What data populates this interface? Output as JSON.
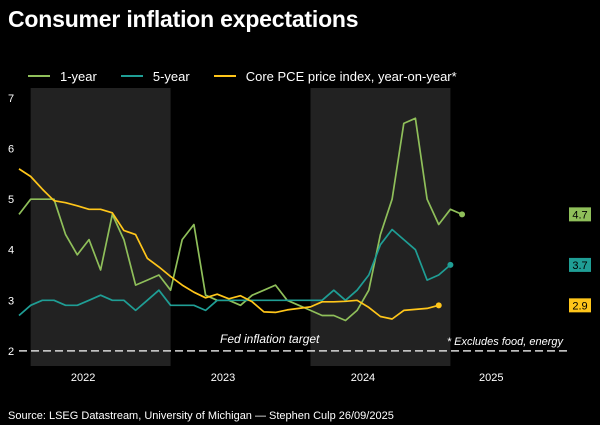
{
  "title": "Consumer inflation expectations",
  "footer": "Source: LSEG Datastream, University of Michigan — Stephen Culp 26/09/2025",
  "colors": {
    "background": "#000000",
    "shade": "#222222",
    "one_year": "#8fbf5a",
    "five_year": "#1f9e95",
    "core_pce": "#ffc61a",
    "target": "#d9d9d9",
    "text": "#ffffff"
  },
  "chart_data": {
    "type": "line",
    "title": "Consumer inflation expectations",
    "xlabel": "",
    "ylabel": "",
    "x_start": "2021-11",
    "x_range": [
      0,
      47
    ],
    "ylim": [
      1.7,
      7.2
    ],
    "y_ticks": [
      2,
      3,
      4,
      5,
      6,
      7
    ],
    "x_tick_labels": [
      {
        "label": "2022",
        "x": 5.5
      },
      {
        "label": "2023",
        "x": 17.5
      },
      {
        "label": "2024",
        "x": 29.5
      },
      {
        "label": "2025",
        "x": 40.5
      }
    ],
    "shaded_years": [
      {
        "label": "2022",
        "from": 1,
        "to": 13
      },
      {
        "label": "2024",
        "from": 25,
        "to": 37
      }
    ],
    "series": [
      {
        "key": "one_year",
        "name": "1-year",
        "values": [
          4.7,
          5.0,
          5.0,
          5.0,
          4.3,
          3.9,
          4.2,
          3.6,
          4.7,
          4.2,
          3.3,
          3.4,
          3.5,
          3.2,
          4.2,
          4.5,
          3.1,
          3.0,
          3.0,
          2.9,
          3.1,
          3.2,
          3.3,
          3.0,
          2.9,
          2.8,
          2.7,
          2.7,
          2.6,
          2.8,
          3.2,
          4.3,
          5.0,
          6.5,
          6.6,
          5.0,
          4.5,
          4.8,
          4.7
        ],
        "end_label": "4.7"
      },
      {
        "key": "five_year",
        "name": "5-year",
        "values": [
          2.7,
          2.9,
          3.0,
          3.0,
          2.9,
          2.9,
          3.0,
          3.1,
          3.0,
          3.0,
          2.8,
          3.0,
          3.2,
          2.9,
          2.9,
          2.9,
          2.8,
          3.0,
          3.0,
          3.0,
          3.0,
          3.0,
          3.0,
          3.0,
          3.0,
          3.0,
          3.0,
          3.2,
          3.0,
          3.2,
          3.5,
          4.1,
          4.4,
          4.2,
          4.0,
          3.4,
          3.5,
          3.7
        ],
        "end_label": "3.7"
      },
      {
        "key": "core_pce",
        "name": "Core PCE price index, year-on-year*",
        "values": [
          5.6,
          5.45,
          5.2,
          4.97,
          4.93,
          4.87,
          4.8,
          4.8,
          4.73,
          4.38,
          4.3,
          3.83,
          3.66,
          3.47,
          3.3,
          3.16,
          3.05,
          3.12,
          3.03,
          3.09,
          2.97,
          2.77,
          2.76,
          2.81,
          2.84,
          2.87,
          2.97,
          2.97,
          2.98,
          3.0,
          2.86,
          2.68,
          2.63,
          2.8,
          2.82,
          2.84,
          2.9
        ],
        "end_label": "2.9"
      }
    ],
    "reference_line": {
      "value": 2.0,
      "label": "Fed inflation target"
    },
    "annotation": "* Excludes food, energy"
  }
}
